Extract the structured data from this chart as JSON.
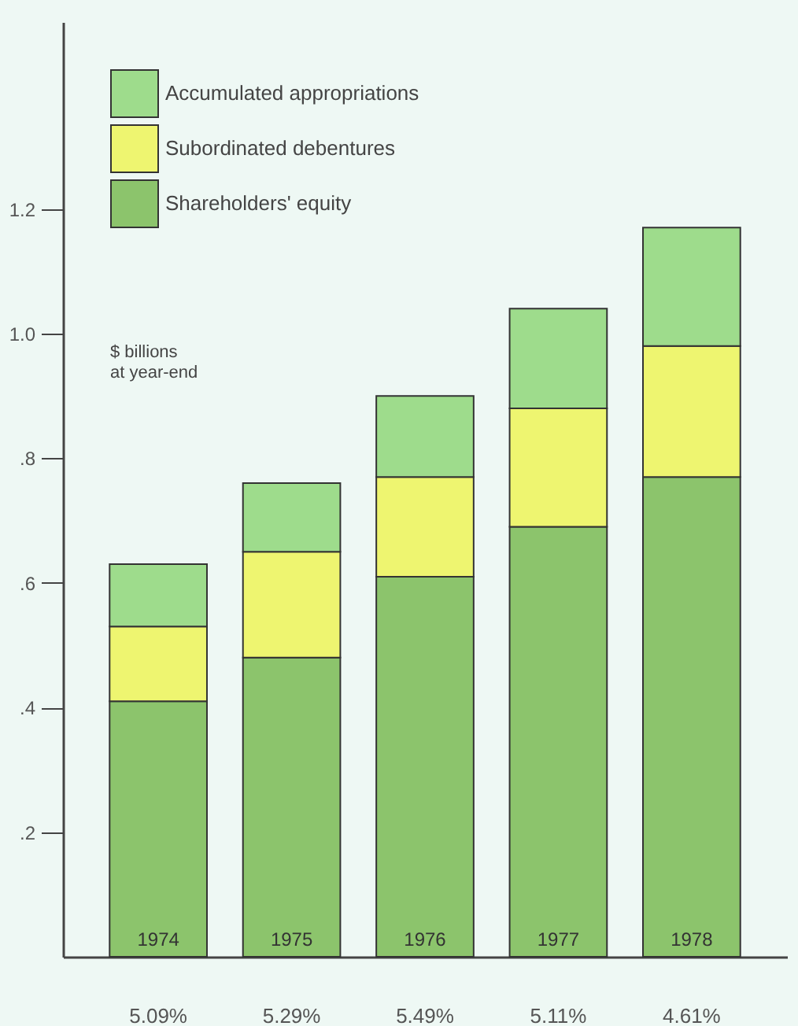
{
  "chart_data": {
    "type": "bar",
    "stacked": true,
    "ylabel": "$ billions\nat year-end",
    "categories": [
      "1974",
      "1975",
      "1976",
      "1977",
      "1978"
    ],
    "series": [
      {
        "name": "Shareholders' equity",
        "color": "#8cc46c",
        "values": [
          0.41,
          0.48,
          0.61,
          0.69,
          0.77
        ]
      },
      {
        "name": "Subordinated debentures",
        "color": "#eef570",
        "values": [
          0.12,
          0.17,
          0.16,
          0.19,
          0.21
        ]
      },
      {
        "name": "Accumulated appropriations",
        "color": "#9edc8c",
        "values": [
          0.1,
          0.11,
          0.13,
          0.16,
          0.19
        ]
      }
    ],
    "ylim": [
      0,
      1.5
    ],
    "yticks": [
      {
        "value": 0.2,
        "label": ".2"
      },
      {
        "value": 0.4,
        "label": ".4"
      },
      {
        "value": 0.6,
        "label": ".6"
      },
      {
        "value": 0.8,
        "label": ".8"
      },
      {
        "value": 1.0,
        "label": "1.0"
      },
      1.2
    ],
    "annotations": [
      "5.09%",
      "5.29%",
      "5.49%",
      "5.11%",
      "4.61%"
    ],
    "legend": "top left",
    "grid": false
  }
}
